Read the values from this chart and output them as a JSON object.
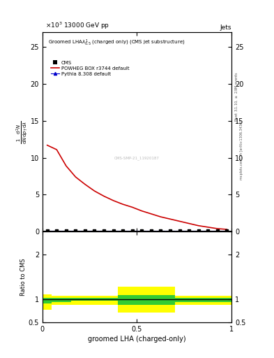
{
  "title_top": "13000 GeV pp",
  "title_right": "Jets",
  "main_title": "Groomed LHA$\\lambda^1_{0.5}$ (charged only) (CMS jet substructure)",
  "xlabel": "groomed LHA (charged-only)",
  "ylabel_main": "$\\frac{1}{\\mathrm{d}N}\\frac{\\mathrm{d}^2N}{\\mathrm{d}p_T\\mathrm{d}\\lambda}$",
  "ylabel_ratio": "Ratio to CMS",
  "right_label_top": "Rivet 3.1.10, $\\geq$ 2.9M events",
  "right_label_bottom": "mcplots.cern.ch [arXiv:1306.3436]",
  "watermark": "CMS-SMP-21_11920187",
  "ylim_main": [
    0,
    27
  ],
  "ylim_ratio": [
    0.5,
    2.5
  ],
  "yticks_main": [
    0,
    5,
    10,
    15,
    20,
    25
  ],
  "yticks_ratio": [
    0.5,
    1,
    2
  ],
  "xlim": [
    0,
    1
  ],
  "xticks": [
    0,
    0.5,
    1
  ],
  "powheg_x": [
    0.025,
    0.075,
    0.125,
    0.175,
    0.225,
    0.275,
    0.325,
    0.375,
    0.425,
    0.475,
    0.525,
    0.575,
    0.625,
    0.675,
    0.725,
    0.775,
    0.825,
    0.875,
    0.925,
    0.975
  ],
  "powheg_y": [
    11.7,
    11.1,
    8.9,
    7.4,
    6.4,
    5.5,
    4.8,
    4.2,
    3.7,
    3.3,
    2.8,
    2.4,
    2.0,
    1.7,
    1.4,
    1.1,
    0.8,
    0.6,
    0.4,
    0.3
  ],
  "cms_x": [
    0.025,
    0.075,
    0.125,
    0.175,
    0.225,
    0.275,
    0.325,
    0.375,
    0.425,
    0.475,
    0.525,
    0.575,
    0.625,
    0.675,
    0.725,
    0.775,
    0.825,
    0.875,
    0.925,
    0.975
  ],
  "cms_y": [
    0.15,
    0.15,
    0.15,
    0.15,
    0.15,
    0.15,
    0.15,
    0.15,
    0.15,
    0.15,
    0.15,
    0.15,
    0.15,
    0.15,
    0.15,
    0.15,
    0.15,
    0.15,
    0.15,
    0.15
  ],
  "pythia_x": [
    0.025,
    0.075,
    0.125,
    0.175,
    0.225,
    0.275,
    0.325,
    0.375,
    0.425,
    0.475,
    0.525,
    0.575,
    0.625,
    0.675,
    0.725,
    0.775,
    0.825,
    0.875,
    0.925,
    0.975
  ],
  "pythia_y": [
    0.15,
    0.15,
    0.15,
    0.15,
    0.15,
    0.15,
    0.15,
    0.15,
    0.15,
    0.15,
    0.15,
    0.15,
    0.15,
    0.15,
    0.15,
    0.15,
    0.15,
    0.15,
    0.15,
    0.15
  ],
  "ratio_x": [
    0.025,
    0.075,
    0.125,
    0.175,
    0.225,
    0.275,
    0.325,
    0.375,
    0.425,
    0.475,
    0.525,
    0.575,
    0.625,
    0.675,
    0.725,
    0.775,
    0.825,
    0.875,
    0.925,
    0.975
  ],
  "ratio_yellow_lo": [
    0.78,
    0.88,
    0.88,
    0.88,
    0.88,
    0.88,
    0.88,
    0.88,
    0.72,
    0.72,
    0.72,
    0.72,
    0.72,
    0.72,
    0.88,
    0.88,
    0.88,
    0.88,
    0.88,
    0.88
  ],
  "ratio_yellow_hi": [
    1.12,
    1.08,
    1.08,
    1.08,
    1.08,
    1.08,
    1.08,
    1.08,
    1.28,
    1.28,
    1.28,
    1.28,
    1.28,
    1.28,
    1.08,
    1.08,
    1.08,
    1.08,
    1.08,
    1.08
  ],
  "ratio_green_lo": [
    0.92,
    0.95,
    0.95,
    0.97,
    0.97,
    0.97,
    0.97,
    0.97,
    0.88,
    0.88,
    0.88,
    0.88,
    0.88,
    0.88,
    0.95,
    0.95,
    0.95,
    0.95,
    0.95,
    0.95
  ],
  "ratio_green_hi": [
    1.03,
    1.03,
    1.03,
    1.03,
    1.03,
    1.03,
    1.03,
    1.03,
    1.1,
    1.1,
    1.1,
    1.1,
    1.1,
    1.1,
    1.03,
    1.03,
    1.03,
    1.03,
    1.03,
    1.03
  ],
  "color_powheg": "#cc0000",
  "color_pythia": "#0000cc",
  "color_cms": "#000000",
  "color_yellow": "#ffff00",
  "color_green": "#33cc33",
  "bin_width": 0.05
}
